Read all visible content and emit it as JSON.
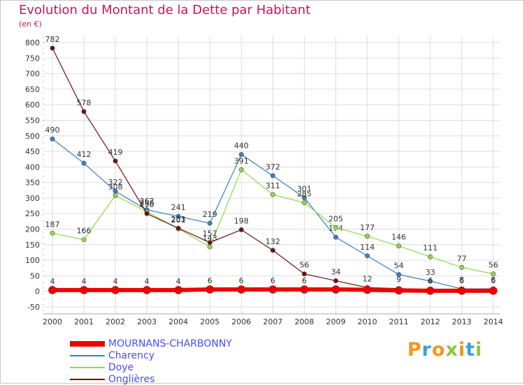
{
  "header": {
    "title": "Evolution du Montant de la Dette par Habitant",
    "subtitle": "(en €)"
  },
  "logo": {
    "text": "Proxiti",
    "colors": [
      "#f7941d",
      "#3aa0dc",
      "#f7941d",
      "#8cc63f",
      "#f7941d",
      "#3aa0dc",
      "#8cc63f"
    ]
  },
  "chart_data": {
    "type": "line",
    "x": [
      "2000",
      "2001",
      "2002",
      "2003",
      "2004",
      "2005",
      "2006",
      "2007",
      "2008",
      "2009",
      "2010",
      "2011",
      "2012",
      "2013",
      "2014"
    ],
    "ylim": [
      -50,
      800
    ],
    "yticks": [
      "-50",
      "0",
      "50",
      "100",
      "150",
      "200",
      "250",
      "300",
      "350",
      "400",
      "450",
      "500",
      "550",
      "600",
      "650",
      "700",
      "750",
      "800"
    ],
    "grid": true,
    "legend_position": "bottom-left",
    "series": [
      {
        "name": "MOURNANS-CHARBONNY",
        "color": "#ee0000",
        "values": [
          4,
          4,
          4,
          4,
          4,
          6,
          6,
          6,
          6,
          6,
          5,
          3,
          2,
          2,
          2
        ],
        "labels": [
          "4",
          "4",
          "4",
          "4",
          "4",
          "6",
          "6",
          "6",
          "6",
          "",
          "",
          "",
          "",
          "",
          ""
        ]
      },
      {
        "name": "Charency",
        "color": "#3a7fc0",
        "values": [
          490,
          412,
          322,
          262,
          241,
          219,
          440,
          372,
          301,
          174,
          114,
          54,
          33,
          8,
          8
        ],
        "labels": [
          "490",
          "412",
          "322",
          "262",
          "241",
          "219",
          "440",
          "372",
          "301",
          "174",
          "114",
          "54",
          "33",
          "8",
          "8"
        ]
      },
      {
        "name": "Doye",
        "color": "#8fd94a",
        "values": [
          187,
          166,
          308,
          256,
          201,
          143,
          391,
          311,
          285,
          205,
          177,
          146,
          111,
          77,
          56
        ],
        "labels": [
          "187",
          "166",
          "308",
          "256",
          "201",
          "143",
          "391",
          "311",
          "285",
          "205",
          "177",
          "146",
          "111",
          "77",
          "56"
        ]
      },
      {
        "name": "Onglières",
        "color": "#6b1212",
        "values": [
          782,
          578,
          419,
          250,
          203,
          157,
          198,
          132,
          56,
          34,
          12,
          9,
          6,
          6,
          6
        ],
        "labels": [
          "782",
          "578",
          "419",
          "250",
          "203",
          "157",
          "198",
          "132",
          "56",
          "34",
          "12",
          "9",
          "6",
          "6",
          "6"
        ]
      }
    ]
  }
}
